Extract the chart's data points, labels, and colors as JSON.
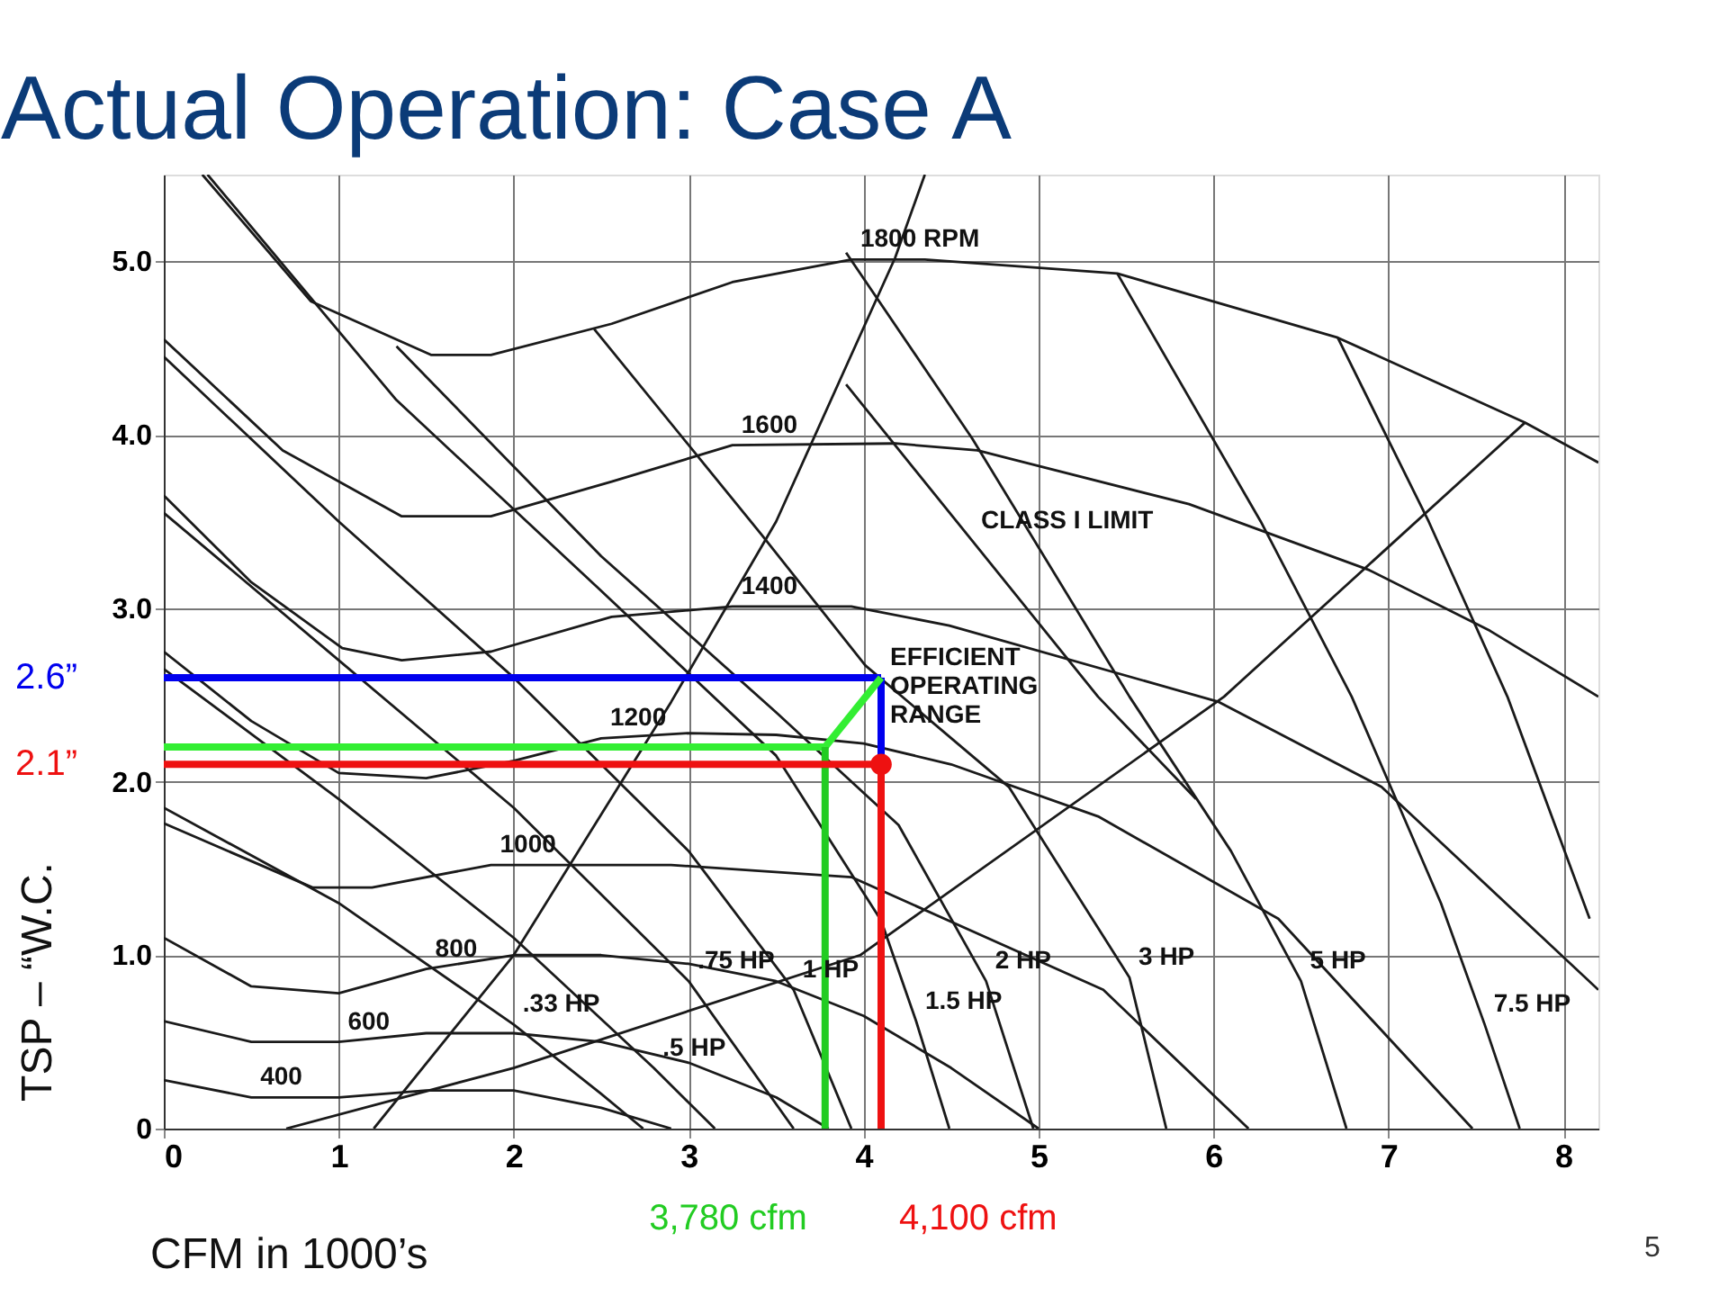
{
  "chart_data": {
    "type": "line",
    "title": "Actual Operation: Case A",
    "xlabel": "CFM in 1000’s",
    "ylabel": "TSP – “W.C.",
    "xlim": [
      0,
      8.2
    ],
    "ylim": [
      0,
      5.5
    ],
    "xticks": [
      0,
      1,
      2,
      3,
      4,
      5,
      6,
      7,
      8
    ],
    "yticks": [
      0,
      {
        "value": 1,
        "label": "1.0"
      },
      {
        "value": 2,
        "label": "2.0"
      },
      {
        "value": 3,
        "label": "3.0"
      },
      {
        "value": 4,
        "label": "4.0"
      },
      {
        "value": 5,
        "label": "5.0"
      }
    ],
    "grid": true,
    "marker": "none",
    "series": [
      {
        "color": "#1a1a1a",
        "x": [
          0.22,
          0.84,
          1.53,
          1.87,
          2.56,
          3.25,
          3.93,
          4.35,
          5.45,
          6.71,
          7.78,
          8.2
        ],
        "values": [
          5.5,
          4.77,
          4.46,
          4.46,
          4.64,
          4.88,
          5.01,
          5.01,
          4.93,
          4.56,
          4.07,
          3.84
        ]
      },
      {
        "color": "#1a1a1a",
        "x": [
          0,
          0.68,
          1.36,
          1.87,
          2.56,
          3.25,
          4.18,
          4.65,
          5.86,
          6.89,
          7.58,
          8.2
        ],
        "values": [
          4.55,
          3.91,
          3.53,
          3.53,
          3.73,
          3.94,
          3.95,
          3.91,
          3.6,
          3.22,
          2.87,
          2.49
        ]
      },
      {
        "color": "#1a1a1a",
        "x": [
          0,
          0.5,
          1.02,
          1.36,
          1.87,
          2.56,
          3.25,
          3.93,
          4.49,
          6.03,
          6.96,
          8.2
        ],
        "values": [
          3.65,
          3.15,
          2.77,
          2.7,
          2.75,
          2.95,
          3.01,
          3.01,
          2.9,
          2.46,
          1.97,
          0.8
        ]
      },
      {
        "color": "#1a1a1a",
        "x": [
          0,
          0.5,
          1,
          1.5,
          2,
          2.5,
          3,
          3.5,
          4,
          4.5,
          5.34,
          6.37,
          7.48
        ],
        "values": [
          2.75,
          2.35,
          2.05,
          2.02,
          2.12,
          2.25,
          2.28,
          2.27,
          2.22,
          2.1,
          1.8,
          1.21,
          0
        ]
      },
      {
        "color": "#1a1a1a",
        "x": [
          0,
          0.85,
          1.19,
          1.87,
          2.9,
          3.93,
          5.37,
          6.2
        ],
        "values": [
          1.76,
          1.39,
          1.39,
          1.52,
          1.52,
          1.45,
          0.8,
          0
        ]
      },
      {
        "color": "#1a1a1a",
        "x": [
          0,
          0.5,
          1,
          1.5,
          2,
          2.5,
          3,
          3.5,
          4,
          4.5,
          5
        ],
        "values": [
          1.1,
          0.82,
          0.78,
          0.92,
          1,
          1,
          0.95,
          0.85,
          0.65,
          0.35,
          0
        ]
      },
      {
        "color": "#1a1a1a",
        "x": [
          0,
          0.5,
          1,
          1.5,
          2,
          2.5,
          3,
          3.5,
          3.8
        ],
        "values": [
          0.62,
          0.5,
          0.5,
          0.55,
          0.55,
          0.5,
          0.38,
          0.18,
          0
        ]
      },
      {
        "color": "#1a1a1a",
        "x": [
          0,
          0.5,
          1,
          1.5,
          2,
          2.5,
          2.9
        ],
        "values": [
          0.28,
          0.18,
          0.18,
          0.22,
          0.22,
          0.12,
          0
        ]
      },
      {
        "color": "#1a1a1a",
        "x": [
          0,
          1,
          2,
          2.5,
          2.74
        ],
        "values": [
          1.85,
          1.3,
          0.6,
          0.2,
          0
        ]
      },
      {
        "color": "#1a1a1a",
        "x": [
          0,
          1,
          2,
          2.8,
          3.15
        ],
        "values": [
          2.65,
          1.9,
          1.1,
          0.35,
          0
        ]
      },
      {
        "color": "#1a1a1a",
        "x": [
          0,
          1,
          2,
          3,
          3.6
        ],
        "values": [
          3.55,
          2.7,
          1.85,
          0.85,
          0
        ]
      },
      {
        "color": "#1a1a1a",
        "x": [
          0,
          1,
          2,
          3,
          3.6,
          3.93
        ],
        "values": [
          4.45,
          3.5,
          2.6,
          1.6,
          0.8,
          0
        ]
      },
      {
        "color": "#1a1a1a",
        "x": [
          0.25,
          1.33,
          2.5,
          3.5,
          4.1,
          4.3,
          4.49
        ],
        "values": [
          5.5,
          4.2,
          3.1,
          2.15,
          1.2,
          0.62,
          0
        ]
      },
      {
        "color": "#1a1a1a",
        "x": [
          1.33,
          2.5,
          3.5,
          4.2,
          4.7,
          4.97
        ],
        "values": [
          4.51,
          3.3,
          2.4,
          1.75,
          0.85,
          0
        ]
      },
      {
        "color": "#1a1a1a",
        "x": [
          2.46,
          3.42,
          4.01,
          4.83,
          5.52,
          5.73
        ],
        "values": [
          4.61,
          3.42,
          2.67,
          1.97,
          0.87,
          0
        ]
      },
      {
        "color": "#1a1a1a",
        "x": [
          3.9,
          4.62,
          5.52,
          6.1,
          6.5,
          6.76
        ],
        "values": [
          5.05,
          3.98,
          2.49,
          1.6,
          0.85,
          0
        ]
      },
      {
        "color": "#1a1a1a",
        "x": [
          5.45,
          6.27,
          6.79,
          7.3,
          7.55,
          7.75
        ],
        "values": [
          4.93,
          3.5,
          2.49,
          1.3,
          0.6,
          0
        ]
      },
      {
        "color": "#1a1a1a",
        "x": [
          6.71,
          7.23,
          7.68,
          8.15
        ],
        "values": [
          4.56,
          3.5,
          2.49,
          1.21
        ]
      },
      {
        "color": "#1a1a1a",
        "x": [
          3.9,
          4.62,
          5.34,
          5.9
        ],
        "values": [
          4.29,
          3.39,
          2.49,
          1.9
        ]
      },
      {
        "color": "#1a1a1a",
        "x": [
          1.2,
          2,
          2.9,
          3.5,
          4.18,
          4.35
        ],
        "values": [
          0,
          1,
          2.46,
          3.5,
          5.02,
          5.5
        ]
      },
      {
        "color": "#1a1a1a",
        "x": [
          0.7,
          2,
          3.98,
          6.06,
          7.78
        ],
        "values": [
          0,
          0.35,
          1,
          2.49,
          4.07
        ]
      },
      {
        "name": "2.6”",
        "color": "#0000ee",
        "x": [
          0,
          4.1
        ],
        "values": [
          2.6,
          2.6
        ]
      },
      {
        "color": "#0000ee",
        "x": [
          4.1,
          4.1
        ],
        "values": [
          2.6,
          2.1
        ]
      },
      {
        "color": "#33ee33",
        "x": [
          0,
          3.78
        ],
        "values": [
          2.2,
          2.2
        ]
      },
      {
        "color": "#33ee33",
        "x": [
          3.78,
          4.1
        ],
        "values": [
          2.2,
          2.6
        ]
      },
      {
        "name": "3,780 cfm",
        "color": "#22cc22",
        "x": [
          3.78,
          3.78
        ],
        "values": [
          0,
          2.2
        ]
      },
      {
        "name": "2.1”",
        "color": "#ee1111",
        "x": [
          0,
          4.1
        ],
        "values": [
          2.1,
          2.1
        ]
      },
      {
        "name": "4,100 cfm",
        "color": "#ee1111",
        "x": [
          4.1,
          4.1
        ],
        "values": [
          0,
          2.1
        ]
      },
      {
        "type": "scatter",
        "marker": "circle",
        "color": "#ee1111",
        "x": [
          4.1
        ],
        "values": [
          2.1
        ]
      }
    ],
    "annotations": [
      {
        "text": "1800 RPM",
        "x": 3.93,
        "y": 5.01
      },
      {
        "text": "1600",
        "x": 3.25,
        "y": 3.94
      },
      {
        "text": "1400",
        "x": 3.25,
        "y": 3.01
      },
      {
        "text": "1200",
        "x": 2.5,
        "y": 2.25
      },
      {
        "text": "1000",
        "x": 1.87,
        "y": 1.52
      },
      {
        "text": "800",
        "x": 1.5,
        "y": 0.92
      },
      {
        "text": "600",
        "x": 1,
        "y": 0.5
      },
      {
        "text": "400",
        "x": 0.5,
        "y": 0.18
      },
      {
        "text": ".33 HP",
        "x": 2,
        "y": 0.6
      },
      {
        "text": ".5 HP",
        "x": 2.8,
        "y": 0.35
      },
      {
        "text": ".75 HP",
        "x": 3,
        "y": 0.85
      },
      {
        "text": "1 HP",
        "x": 3.6,
        "y": 0.8
      },
      {
        "text": "1.5 HP",
        "x": 4.3,
        "y": 0.62
      },
      {
        "text": "2 HP",
        "x": 4.7,
        "y": 0.85
      },
      {
        "text": "3 HP",
        "x": 5.52,
        "y": 0.87
      },
      {
        "text": "5 HP",
        "x": 6.5,
        "y": 0.85
      },
      {
        "text": "7.5 HP",
        "x": 7.55,
        "y": 0.6
      },
      {
        "text": "CLASS I LIMIT",
        "x": 4.62,
        "y": 3.39
      },
      {
        "text": "EFFICIENT\nOPERATING\nRANGE",
        "x": 4.1,
        "y": 2.6
      },
      "5"
    ]
  }
}
